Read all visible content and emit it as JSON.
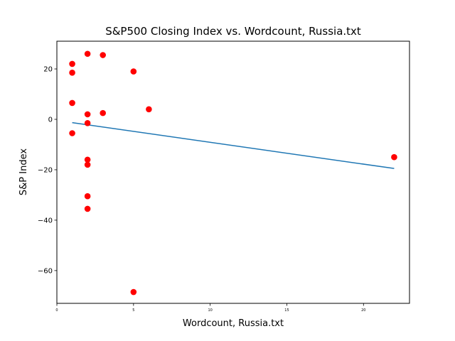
{
  "chart_data": {
    "type": "scatter",
    "title": "S&P500 Closing Index vs. Wordcount, Russia.txt",
    "xlabel": "Wordcount, Russia.txt",
    "ylabel": "S&P Index",
    "xlim": [
      0,
      23
    ],
    "ylim": [
      -73,
      31
    ],
    "xticks": [
      0,
      5,
      10,
      15,
      20
    ],
    "xtick_labels": [
      "0",
      "5",
      "10",
      "15",
      "20"
    ],
    "yticks": [
      -60,
      -40,
      -20,
      0,
      20
    ],
    "ytick_labels": [
      "−60",
      "−40",
      "−20",
      "0",
      "20"
    ],
    "grid": false,
    "legend": "none",
    "points_color": "#ff0000",
    "line_color": "#1f77b4",
    "points": [
      {
        "x": 1,
        "y": 22
      },
      {
        "x": 1,
        "y": 18.5
      },
      {
        "x": 1,
        "y": 6.5
      },
      {
        "x": 1,
        "y": -5.5
      },
      {
        "x": 2,
        "y": 26
      },
      {
        "x": 2,
        "y": 2
      },
      {
        "x": 2,
        "y": -1.5
      },
      {
        "x": 2,
        "y": -16
      },
      {
        "x": 2,
        "y": -18
      },
      {
        "x": 2,
        "y": -30.5
      },
      {
        "x": 2,
        "y": -35.5
      },
      {
        "x": 3,
        "y": 25.5
      },
      {
        "x": 3,
        "y": 2.5
      },
      {
        "x": 5,
        "y": 19
      },
      {
        "x": 5,
        "y": -68.5
      },
      {
        "x": 6,
        "y": 4
      },
      {
        "x": 22,
        "y": -15
      }
    ],
    "fit_line": [
      {
        "x": 1,
        "y": -1.3
      },
      {
        "x": 22,
        "y": -19.5
      }
    ]
  }
}
